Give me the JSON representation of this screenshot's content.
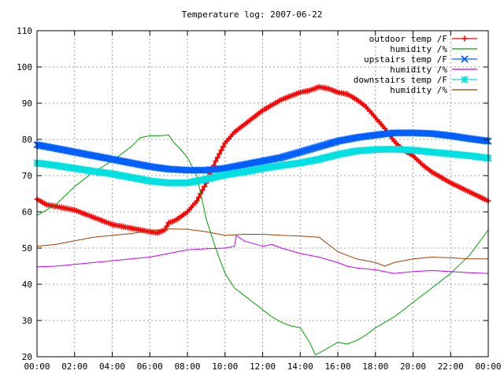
{
  "chart_data": {
    "type": "line",
    "title": "Temperature log: 2007-06-22",
    "xlabel": "",
    "ylabel": "",
    "xlim": [
      0,
      24
    ],
    "ylim": [
      20,
      110
    ],
    "grid": true,
    "legend_position": "top-right",
    "x_ticks": [
      "00:00",
      "02:00",
      "04:00",
      "06:00",
      "08:00",
      "10:00",
      "12:00",
      "14:00",
      "16:00",
      "18:00",
      "20:00",
      "22:00",
      "00:00"
    ],
    "y_ticks": [
      20,
      30,
      40,
      50,
      60,
      70,
      80,
      90,
      100,
      110
    ],
    "series": [
      {
        "name": "outdoor temp /F",
        "color": "#ff0000",
        "marker": "plus",
        "x": [
          0,
          0.5,
          1,
          2,
          3,
          4,
          5,
          5.5,
          6,
          6.4,
          6.8,
          7,
          7.3,
          7.6,
          8,
          8.5,
          9,
          9.5,
          10,
          10.5,
          11,
          11.5,
          12,
          12.5,
          13,
          13.5,
          14,
          14.5,
          15,
          15.5,
          16,
          16.5,
          17,
          17.5,
          18,
          18.5,
          19,
          19.5,
          20,
          20.5,
          21,
          22,
          23,
          24
        ],
        "y": [
          63.5,
          62,
          61.5,
          60.5,
          58.5,
          56.5,
          55.5,
          55,
          54.5,
          54.2,
          55,
          57,
          57.5,
          58.5,
          60,
          63,
          68,
          74,
          79,
          82,
          84,
          86,
          88,
          89.5,
          91,
          92,
          93,
          93.5,
          94.5,
          94,
          93,
          92.5,
          91,
          89,
          86,
          83,
          79.5,
          77,
          75.5,
          73,
          71,
          68,
          65.5,
          63
        ]
      },
      {
        "name": "humidity /%",
        "color": "#00a000",
        "marker": "none",
        "x": [
          0,
          1,
          2,
          3,
          4,
          5,
          5.5,
          6,
          6.5,
          7,
          7.3,
          7.6,
          8,
          8.5,
          9,
          9.5,
          10,
          10.5,
          11,
          11.5,
          12,
          12.5,
          13,
          13.5,
          14,
          14.5,
          14.8,
          15,
          15.5,
          16,
          16.5,
          17,
          17.5,
          18,
          19,
          20,
          21,
          22,
          23,
          24
        ],
        "y": [
          59,
          62,
          67,
          71,
          74,
          78,
          80.5,
          81,
          81,
          81.2,
          79,
          77.5,
          75,
          70,
          58,
          50,
          43,
          39,
          37,
          35,
          33,
          31,
          29.5,
          28.5,
          28,
          24,
          20.5,
          21,
          22.5,
          24,
          23.5,
          24.5,
          26,
          28,
          31,
          35,
          39,
          43,
          48,
          55
        ]
      },
      {
        "name": "upstairs temp /F",
        "color": "#0060ff",
        "marker": "cross",
        "x": [
          0,
          1,
          2,
          3,
          4,
          5,
          6,
          7,
          8,
          9,
          10,
          11,
          12,
          13,
          14,
          15,
          16,
          17,
          18,
          19,
          20,
          21,
          22,
          23,
          24
        ],
        "y": [
          78.5,
          77.5,
          76.5,
          75.5,
          74.5,
          73.5,
          72.5,
          71.8,
          71.5,
          71.5,
          72,
          73,
          74,
          75,
          76.5,
          78,
          79.5,
          80.5,
          81.2,
          81.8,
          81.8,
          81.6,
          81,
          80.2,
          79.5
        ]
      },
      {
        "name": "humidity /%",
        "color": "#c000ff",
        "marker": "none",
        "x": [
          0,
          1,
          2,
          3,
          4,
          5,
          6,
          7,
          8,
          9,
          10,
          10.5,
          10.6,
          11,
          12,
          12.5,
          13,
          14,
          15,
          16,
          16.5,
          17,
          18,
          19,
          20,
          21,
          22,
          23,
          24
        ],
        "y": [
          44.8,
          45,
          45.5,
          46,
          46.5,
          47,
          47.5,
          48.5,
          49.5,
          49.8,
          50,
          50.5,
          53.5,
          52,
          50.5,
          51,
          50,
          48.5,
          47.5,
          46,
          45,
          44.5,
          44,
          43,
          43.5,
          43.8,
          43.5,
          43.2,
          43
        ]
      },
      {
        "name": "downstairs temp /F",
        "color": "#00e0e0",
        "marker": "asterisk",
        "x": [
          0,
          1,
          2,
          3,
          4,
          5,
          6,
          7,
          8,
          9,
          10,
          11,
          12,
          13,
          14,
          15,
          16,
          17,
          18,
          19,
          20,
          21,
          22,
          23,
          24
        ],
        "y": [
          73.5,
          72.8,
          72,
          71.2,
          70.5,
          69.5,
          68.5,
          68,
          68,
          69,
          70.2,
          71,
          72,
          72.8,
          73.5,
          74.5,
          75.8,
          76.8,
          77.2,
          77.3,
          77,
          76.5,
          76,
          75.5,
          74.8
        ]
      },
      {
        "name": "humidity /%",
        "color": "#a04000",
        "marker": "none",
        "x": [
          0,
          1,
          2,
          3,
          4,
          5,
          6,
          7,
          8,
          9,
          10,
          11,
          12,
          13,
          14,
          15,
          16,
          16.5,
          17,
          18,
          18.5,
          19,
          20,
          21,
          22,
          23,
          24
        ],
        "y": [
          50.5,
          51,
          52,
          53,
          53.5,
          54,
          54.8,
          55.3,
          55.2,
          54.5,
          53.5,
          53.8,
          53.8,
          53.5,
          53.3,
          53,
          49,
          48,
          47,
          46,
          45,
          46,
          47,
          47.5,
          47.3,
          47,
          47
        ]
      }
    ]
  }
}
